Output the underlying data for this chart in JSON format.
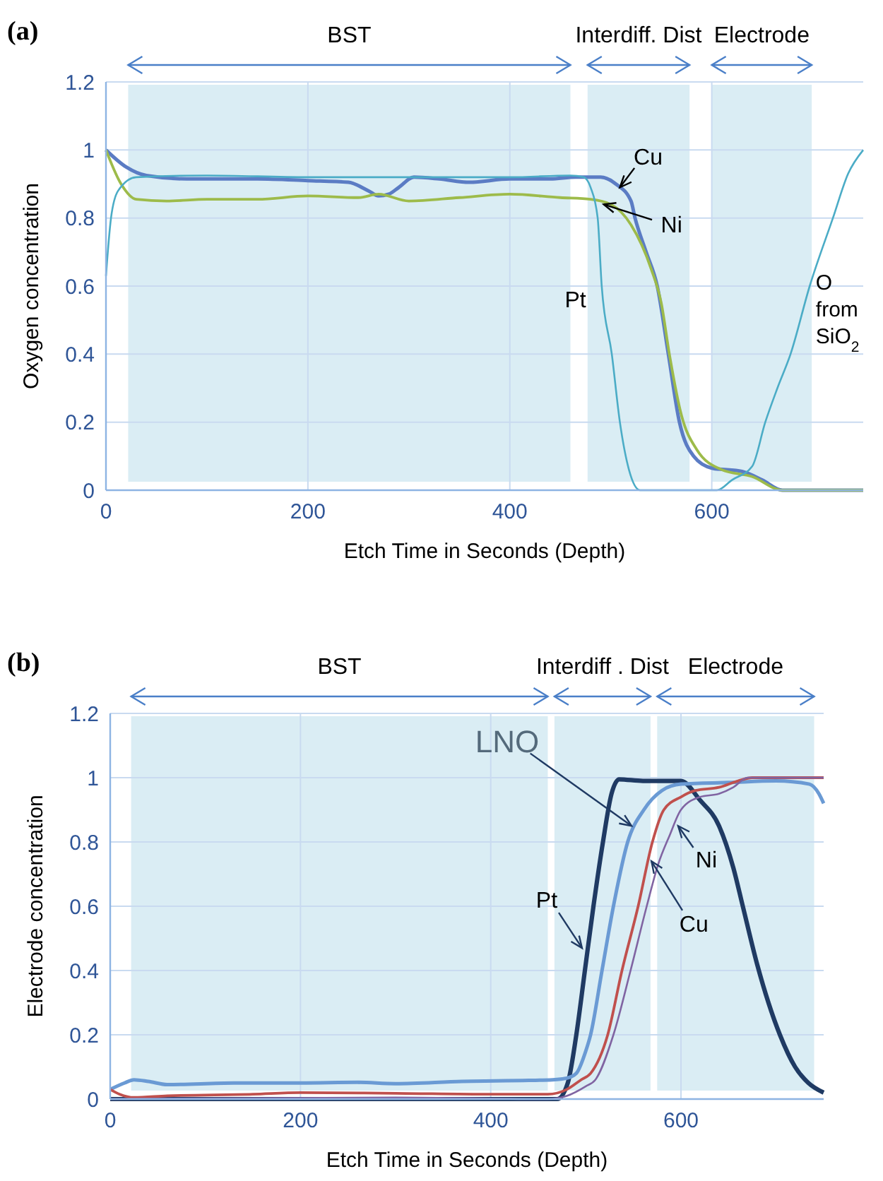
{
  "chart_data": [
    {
      "type": "line",
      "title": "(a)",
      "xlabel": "Etch Time in Seconds (Depth)",
      "ylabel": "Oxygen concentration",
      "xlim": [
        0,
        750
      ],
      "ylim": [
        0,
        1.2
      ],
      "xticks": [
        0,
        200,
        400,
        600
      ],
      "yticks": [
        0,
        0.2,
        0.4,
        0.6,
        0.8,
        1,
        1.2
      ],
      "grid": true,
      "bands": [
        {
          "axis": "x",
          "from": 22,
          "to": 460,
          "label": "BST",
          "color": "#daedf4"
        },
        {
          "axis": "x",
          "from": 477,
          "to": 578,
          "label": "Interdiff. Dist",
          "color": "#daedf4"
        },
        {
          "axis": "x",
          "from": 600,
          "to": 699,
          "label": "Electrode",
          "color": "#daedf4"
        }
      ],
      "series": [
        {
          "color": "#5b7cc4",
          "x": [
            0,
            20,
            40,
            80,
            150,
            200,
            240,
            260,
            270,
            280,
            290,
            305,
            330,
            360,
            400,
            440,
            465,
            490,
            505,
            520,
            524,
            535,
            546,
            557,
            568,
            582,
            600,
            630,
            650,
            670,
            750
          ],
          "values": [
            1.0,
            0.95,
            0.925,
            0.915,
            0.915,
            0.91,
            0.905,
            0.88,
            0.865,
            0.87,
            0.89,
            0.92,
            0.915,
            0.905,
            0.915,
            0.915,
            0.92,
            0.92,
            0.9,
            0.85,
            0.8,
            0.7,
            0.6,
            0.4,
            0.2,
            0.1,
            0.065,
            0.055,
            0.03,
            0,
            0
          ]
        },
        {
          "color": "#9dbb4a",
          "x": [
            0,
            15,
            30,
            60,
            100,
            150,
            200,
            250,
            270,
            300,
            350,
            400,
            450,
            480,
            500,
            520,
            540,
            550,
            558,
            570,
            585,
            610,
            640,
            670,
            750
          ],
          "values": [
            1.0,
            0.9,
            0.855,
            0.85,
            0.855,
            0.855,
            0.865,
            0.86,
            0.87,
            0.85,
            0.86,
            0.87,
            0.86,
            0.855,
            0.84,
            0.78,
            0.65,
            0.55,
            0.4,
            0.22,
            0.12,
            0.06,
            0.04,
            0,
            0
          ]
        },
        {
          "color": "#4bacc6",
          "x": [
            0,
            5,
            12,
            30,
            100,
            200,
            300,
            400,
            460,
            473,
            480,
            487,
            491,
            501,
            509,
            518,
            529,
            600,
            605,
            620,
            640,
            653,
            665,
            678,
            697,
            720,
            735,
            750
          ],
          "values": [
            0.63,
            0.8,
            0.88,
            0.92,
            0.925,
            0.92,
            0.92,
            0.92,
            0.925,
            0.92,
            0.89,
            0.8,
            0.6,
            0.4,
            0.2,
            0.06,
            0,
            0,
            0,
            0.03,
            0.07,
            0.2,
            0.3,
            0.4,
            0.6,
            0.8,
            0.93,
            1.0
          ]
        }
      ],
      "annotations": [
        {
          "text": "Cu",
          "x": 509,
          "y": 0.89
        },
        {
          "text": "Ni",
          "x": 493,
          "y": 0.84
        },
        {
          "text": "Pt",
          "x": 465,
          "y": 0.56
        },
        {
          "text": "O from SiO$_{2}$",
          "x": 703,
          "y": 0.59
        }
      ]
    },
    {
      "type": "line",
      "title": "(b)",
      "xlabel": "Etch Time in Seconds (Depth)",
      "ylabel": "Electrode  concentration",
      "xlim": [
        0,
        750
      ],
      "ylim": [
        0,
        1.2
      ],
      "xticks": [
        0,
        200,
        400,
        600
      ],
      "yticks": [
        0,
        0.2,
        0.4,
        0.6,
        0.8,
        1,
        1.2
      ],
      "grid": true,
      "bands": [
        {
          "axis": "x",
          "from": 22,
          "to": 460,
          "label": "BST",
          "color": "#daedf4"
        },
        {
          "axis": "x",
          "from": 467,
          "to": 568,
          "label": "Interdiff . Dist",
          "color": "#daedf4"
        },
        {
          "axis": "x",
          "from": 575,
          "to": 740,
          "label": "Electrode",
          "color": "#daedf4"
        }
      ],
      "series": [
        {
          "color": "#1f3a63",
          "x": [
            0,
            470,
            481,
            490,
            499,
            508,
            518,
            527,
            535,
            560,
            600,
            620,
            640,
            655,
            665,
            680,
            704,
            720,
            734,
            750
          ],
          "values": [
            0,
            0,
            0.05,
            0.2,
            0.4,
            0.6,
            0.8,
            0.95,
            0.995,
            0.99,
            0.99,
            0.93,
            0.85,
            0.72,
            0.6,
            0.42,
            0.2,
            0.1,
            0.05,
            0.02
          ]
        },
        {
          "color": "#6a9ad4",
          "x": [
            0,
            15,
            25,
            40,
            60,
            130,
            200,
            260,
            300,
            370,
            440,
            465,
            480,
            490,
            500,
            505,
            517,
            529,
            544,
            561,
            580,
            600,
            650,
            700,
            735,
            745,
            750
          ],
          "values": [
            0.03,
            0.05,
            0.06,
            0.055,
            0.045,
            0.05,
            0.05,
            0.052,
            0.048,
            0.055,
            0.058,
            0.06,
            0.065,
            0.08,
            0.15,
            0.2,
            0.4,
            0.6,
            0.8,
            0.9,
            0.96,
            0.98,
            0.985,
            0.99,
            0.98,
            0.95,
            0.92
          ]
        },
        {
          "color": "#c0504d",
          "x": [
            0,
            10,
            25,
            60,
            150,
            200,
            300,
            400,
            460,
            480,
            495,
            505,
            523,
            538,
            555,
            570,
            582,
            600,
            615,
            640,
            660,
            675,
            750
          ],
          "values": [
            0.03,
            0.015,
            0.005,
            0.01,
            0.015,
            0.02,
            0.018,
            0.015,
            0.015,
            0.03,
            0.06,
            0.08,
            0.2,
            0.4,
            0.6,
            0.8,
            0.9,
            0.94,
            0.96,
            0.97,
            0.99,
            1.0,
            1.0
          ]
        },
        {
          "color": "#8064a2",
          "x": [
            0,
            300,
            460,
            480,
            500,
            510,
            529,
            547,
            564,
            576,
            588,
            600,
            620,
            640,
            655,
            670,
            750
          ],
          "values": [
            0,
            0.005,
            0,
            0.01,
            0.04,
            0.06,
            0.2,
            0.4,
            0.6,
            0.73,
            0.82,
            0.9,
            0.94,
            0.95,
            0.97,
            1.0,
            1.0
          ]
        }
      ],
      "annotations": [
        {
          "text": "LNO",
          "x": 548,
          "y": 0.85
        },
        {
          "text": "Pt",
          "x": 496,
          "y": 0.47
        },
        {
          "text": "Ni",
          "x": 597,
          "y": 0.85
        },
        {
          "text": "Cu",
          "x": 569,
          "y": 0.74
        }
      ]
    }
  ]
}
